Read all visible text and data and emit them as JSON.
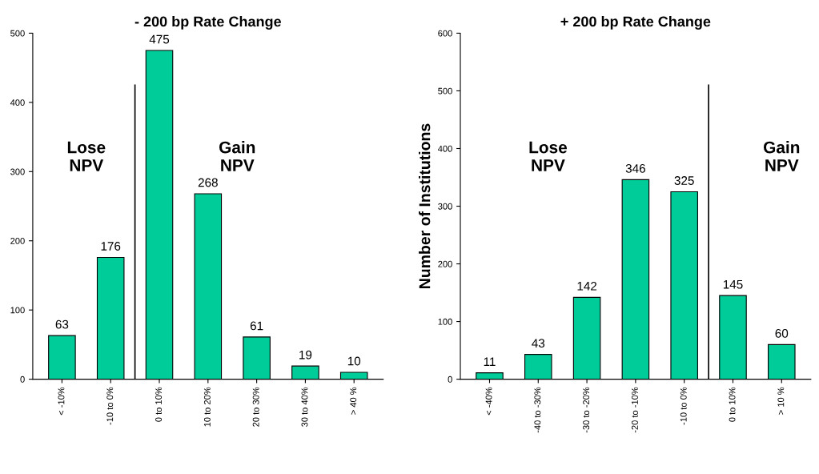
{
  "chart_data": [
    {
      "type": "bar",
      "title": "- 200 bp Rate Change",
      "categories": [
        "< -10%",
        "-10 to 0%",
        "0 to 10%",
        "10 to 20%",
        "20 to 30%",
        "30 to 40%",
        "> 40 %"
      ],
      "values": [
        63,
        176,
        475,
        268,
        61,
        19,
        10
      ],
      "color": "#00cc99",
      "ylim": [
        0,
        500
      ],
      "yticks": [
        0,
        100,
        200,
        300,
        400,
        500
      ],
      "data_labels": true,
      "grid": false,
      "legend": false,
      "annotations": [
        "Lose\nNPV",
        "Gain\nNPV"
      ]
    },
    {
      "type": "bar",
      "title": "+ 200 bp Rate Change",
      "ylabel": "Number of Institutions",
      "categories": [
        "< -40%",
        "-40 to -30%",
        "-30 to -20%",
        "-20 to -10%",
        "-10 to 0%",
        "0 to 10%",
        "> 10 %"
      ],
      "values": [
        11,
        43,
        142,
        346,
        325,
        145,
        60
      ],
      "color": "#00cc99",
      "ylim": [
        0,
        600
      ],
      "yticks": [
        0,
        100,
        200,
        300,
        400,
        500,
        600
      ],
      "data_labels": true,
      "grid": false,
      "legend": false,
      "annotations": [
        "Lose\nNPV",
        "Gain\nNPV"
      ]
    }
  ]
}
